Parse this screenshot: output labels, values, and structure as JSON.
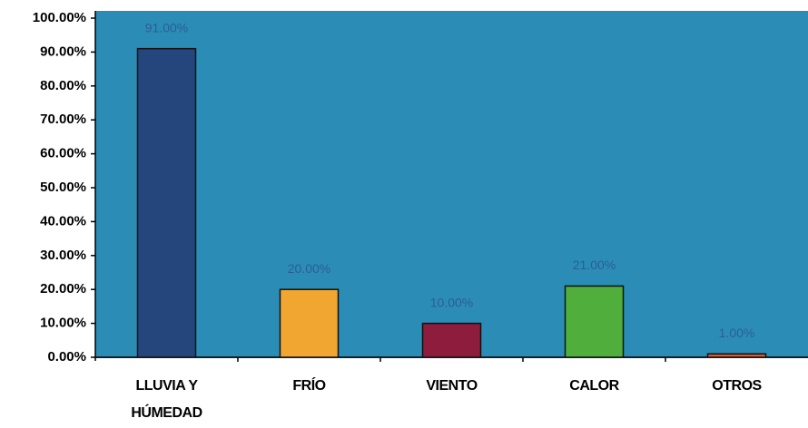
{
  "chart_data": {
    "type": "bar",
    "categories": [
      "LLUVIA Y HÚMEDAD",
      "FRÍO",
      "VIENTO",
      "CALOR",
      "OTROS"
    ],
    "values": [
      91,
      20,
      10,
      21,
      1
    ],
    "value_labels": [
      "91.00%",
      "20.00%",
      "10.00%",
      "21.00%",
      "1.00%"
    ],
    "colors": [
      "#25467c",
      "#f2a632",
      "#8e1c3c",
      "#4fae3c",
      "#e2562a"
    ],
    "ylim": [
      0,
      100
    ],
    "yticks": [
      {
        "value": 0,
        "label": "0.00%"
      },
      {
        "value": 10,
        "label": "10.00%"
      },
      {
        "value": 20,
        "label": "20.00%"
      },
      {
        "value": 30,
        "label": "30.00%"
      },
      {
        "value": 40,
        "label": "40.00%"
      },
      {
        "value": 50,
        "label": "50.00%"
      },
      {
        "value": 60,
        "label": "60.00%"
      },
      {
        "value": 70,
        "label": "70.00%"
      },
      {
        "value": 80,
        "label": "80.00%"
      },
      {
        "value": 90,
        "label": "90.00%"
      },
      {
        "value": 100,
        "label": "100.00%"
      }
    ],
    "grid": false
  }
}
